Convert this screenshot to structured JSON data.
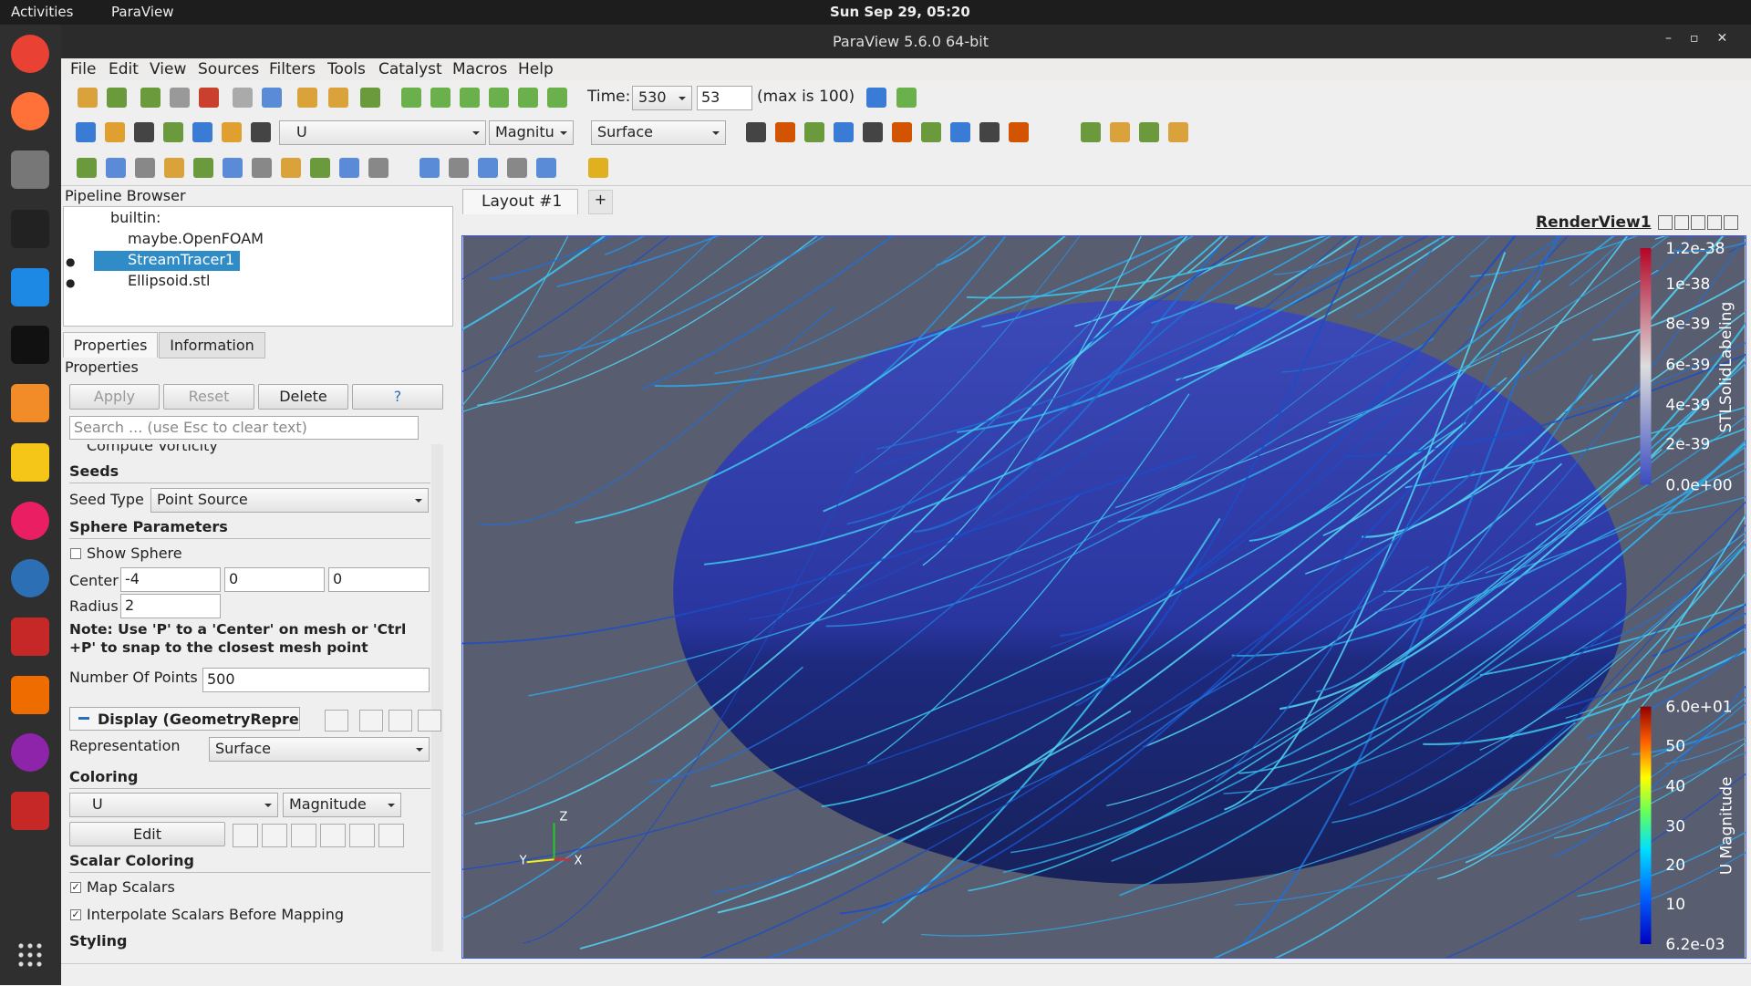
{
  "topbar": {
    "activities": "Activities",
    "app": "ParaView",
    "clock": "Sun Sep 29, 05:20"
  },
  "window": {
    "title": "ParaView 5.6.0 64-bit"
  },
  "menu": [
    "File",
    "Edit",
    "View",
    "Sources",
    "Filters",
    "Tools",
    "Catalyst",
    "Macros",
    "Help"
  ],
  "toolbar": {
    "time_label": "Time:",
    "time_value": "530",
    "time_index": "53",
    "time_max": "(max is 100)",
    "array": "U",
    "component": "Magnitu",
    "representation": "Surface"
  },
  "pipeline": {
    "title": "Pipeline Browser",
    "items": [
      "builtin:",
      "maybe.OpenFOAM",
      "StreamTracer1",
      "Ellipsoid.stl"
    ]
  },
  "tabs": [
    "Properties",
    "Information"
  ],
  "properties": {
    "title": "Properties",
    "buttons": [
      "Apply",
      "Reset",
      "Delete",
      "?"
    ],
    "search": "Search ... (use Esc to clear text)",
    "compute_vorticity": "Compute Vorticity",
    "seeds": "Seeds",
    "seed_type_label": "Seed Type",
    "seed_type": "Point Source",
    "sphere_parameters": "Sphere Parameters",
    "show_sphere": "Show Sphere",
    "center_label": "Center",
    "center": [
      "-4",
      "0",
      "0"
    ],
    "radius_label": "Radius",
    "radius": "2",
    "note": "Note: Use 'P' to a 'Center' on mesh or 'Ctrl +P' to snap to the closest mesh point",
    "points_label": "Number Of Points",
    "points": "500",
    "display": "Display (GeometryRepres",
    "representation_label": "Representation",
    "representation": "Surface",
    "coloring": "Coloring",
    "color_array": "U",
    "color_component": "Magnitude",
    "edit": "Edit",
    "scalar_coloring": "Scalar Coloring",
    "map_scalars": "Map Scalars",
    "interpolate": "Interpolate Scalars Before Mapping",
    "styling": "Styling"
  },
  "layout": {
    "tab": "Layout #1",
    "add": "+",
    "view": "RenderView1"
  },
  "legends": [
    {
      "title": "STLSolidLabeling",
      "labels": [
        "1.2e-38",
        "1e-38",
        "8e-39",
        "6e-39",
        "4e-39",
        "2e-39",
        "0.0e+00"
      ]
    },
    {
      "title": "U Magnitude",
      "labels": [
        "6.0e+01",
        "50",
        "40",
        "30",
        "20",
        "10",
        "6.2e-03"
      ]
    }
  ],
  "axes": [
    "Z",
    "Y",
    "X"
  ]
}
